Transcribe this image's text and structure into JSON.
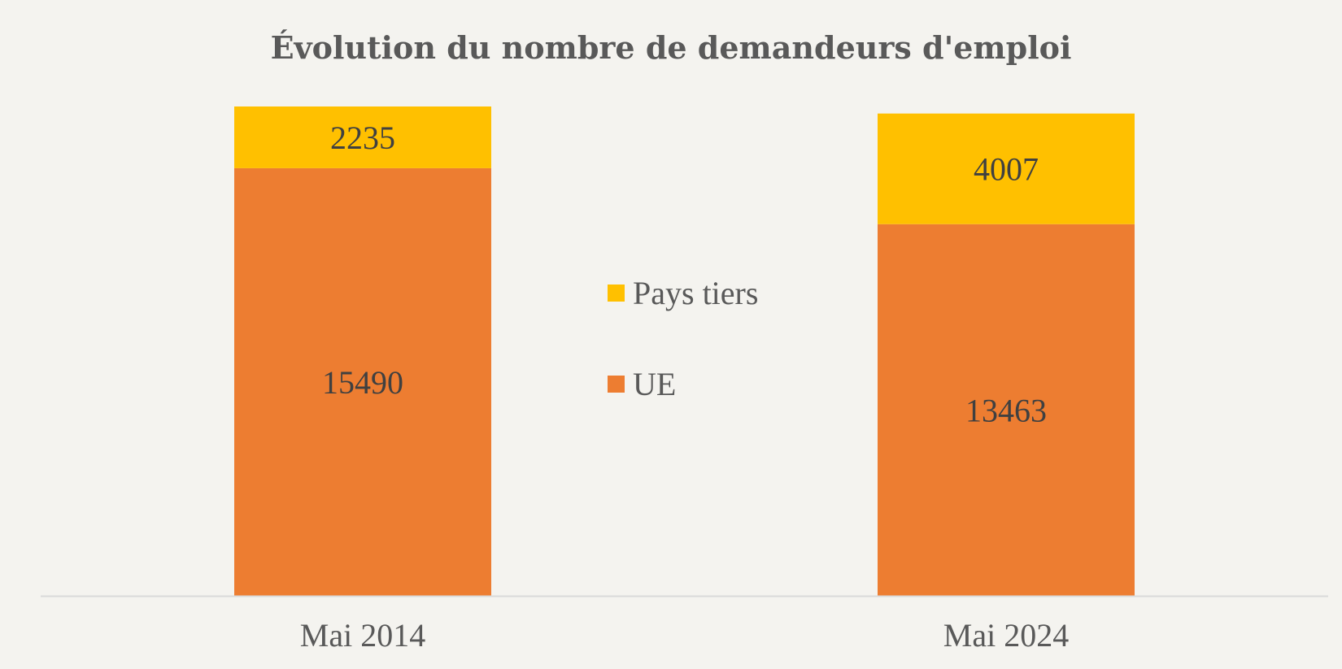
{
  "chart_data": {
    "type": "bar",
    "stacked": true,
    "title": "Évolution du nombre de demandeurs d'emploi",
    "categories": [
      "Mai 2014",
      "Mai 2024"
    ],
    "series": [
      {
        "name": "UE",
        "values": [
          15490,
          13463
        ],
        "color": "#ed7d31"
      },
      {
        "name": "Pays tiers",
        "values": [
          2235,
          4007
        ],
        "color": "#ffc000"
      }
    ],
    "legend": {
      "placement": "center",
      "order": [
        "Pays tiers",
        "UE"
      ]
    },
    "ylim": [
      0,
      17725
    ],
    "grid": false,
    "data_labels": true
  }
}
